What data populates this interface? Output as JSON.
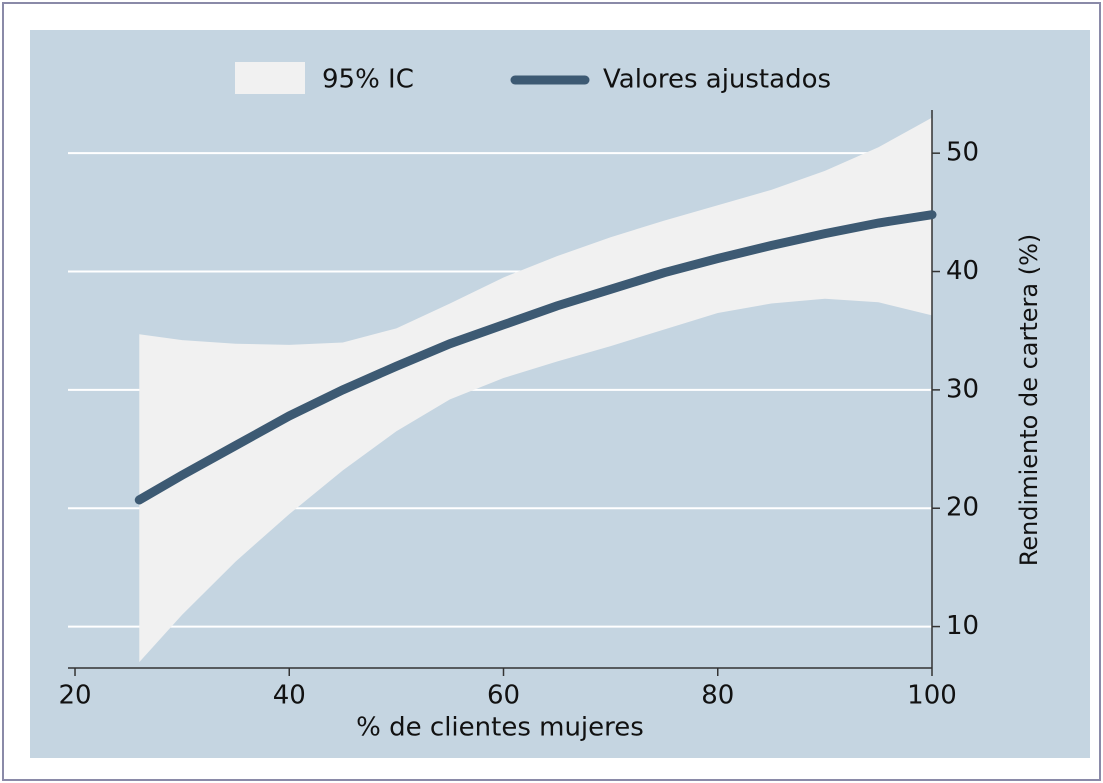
{
  "chart_data": {
    "type": "line",
    "x_label": "% de clientes mujeres",
    "y_label": "Rendimiento de cartera (%)",
    "x": [
      26,
      30,
      35,
      40,
      45,
      50,
      55,
      60,
      65,
      70,
      75,
      80,
      85,
      90,
      95,
      100
    ],
    "series": [
      {
        "name": "95% IC",
        "color": "#f1f1f1",
        "upper": [
          34.7,
          34.2,
          33.9,
          33.8,
          34.0,
          35.2,
          37.3,
          39.5,
          41.3,
          42.9,
          44.3,
          45.6,
          46.9,
          48.5,
          50.5,
          53.0
        ],
        "lower": [
          7.0,
          11.0,
          15.5,
          19.5,
          23.2,
          26.5,
          29.2,
          31.0,
          32.4,
          33.7,
          35.1,
          36.5,
          37.3,
          37.7,
          37.4,
          36.3
        ]
      },
      {
        "name": "Valores ajustados",
        "color": "#3d5a73",
        "values": [
          20.7,
          22.8,
          25.3,
          27.8,
          30.0,
          32.0,
          33.9,
          35.5,
          37.1,
          38.5,
          39.9,
          41.1,
          42.2,
          43.2,
          44.1,
          44.8
        ]
      }
    ],
    "xlim": [
      19,
      100
    ],
    "ylim": [
      6.5,
      55
    ],
    "xticks": [
      20,
      40,
      60,
      80,
      100
    ],
    "yticks": [
      10,
      20,
      30,
      40,
      50
    ],
    "grid": true,
    "y_axis_side": "right",
    "legend_position": "top"
  }
}
